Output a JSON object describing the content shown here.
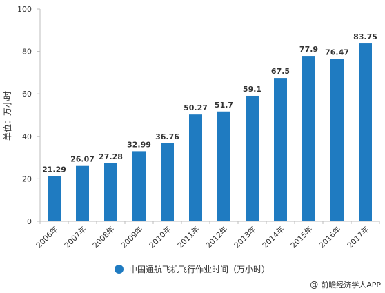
{
  "colors": {
    "bar": "#1f7bc1",
    "axis": "#bdbdbd",
    "grid": "#e4e4e4",
    "text": "#333333"
  },
  "chart_data": {
    "type": "bar",
    "categories": [
      "2006年",
      "2007年",
      "2008年",
      "2009年",
      "2010年",
      "2011年",
      "2012年",
      "2013年",
      "2014年",
      "2015年",
      "2016年",
      "2017年"
    ],
    "series": [
      {
        "name": "中国通航飞机飞行作业时间（万小时）",
        "values": [
          21.29,
          26.07,
          27.28,
          32.99,
          36.76,
          50.27,
          51.7,
          59.1,
          67.5,
          77.9,
          76.47,
          83.75
        ]
      }
    ],
    "value_labels": [
      "21.29",
      "26.07",
      "27.28",
      "32.99",
      "36.76",
      "50.27",
      "51.7",
      "59.1",
      "67.5",
      "77.9",
      "76.47",
      "83.75"
    ],
    "ylabel": "单位：万小时",
    "ylim": [
      0,
      100
    ],
    "yticks": [
      0,
      20,
      40,
      60,
      80,
      100
    ],
    "grid": false,
    "legend_position": "bottom"
  },
  "legend": {
    "label": "中国通航飞机飞行作业时间（万小时）"
  },
  "credit": {
    "symbol": "@",
    "text": "前瞻经济学人APP"
  }
}
